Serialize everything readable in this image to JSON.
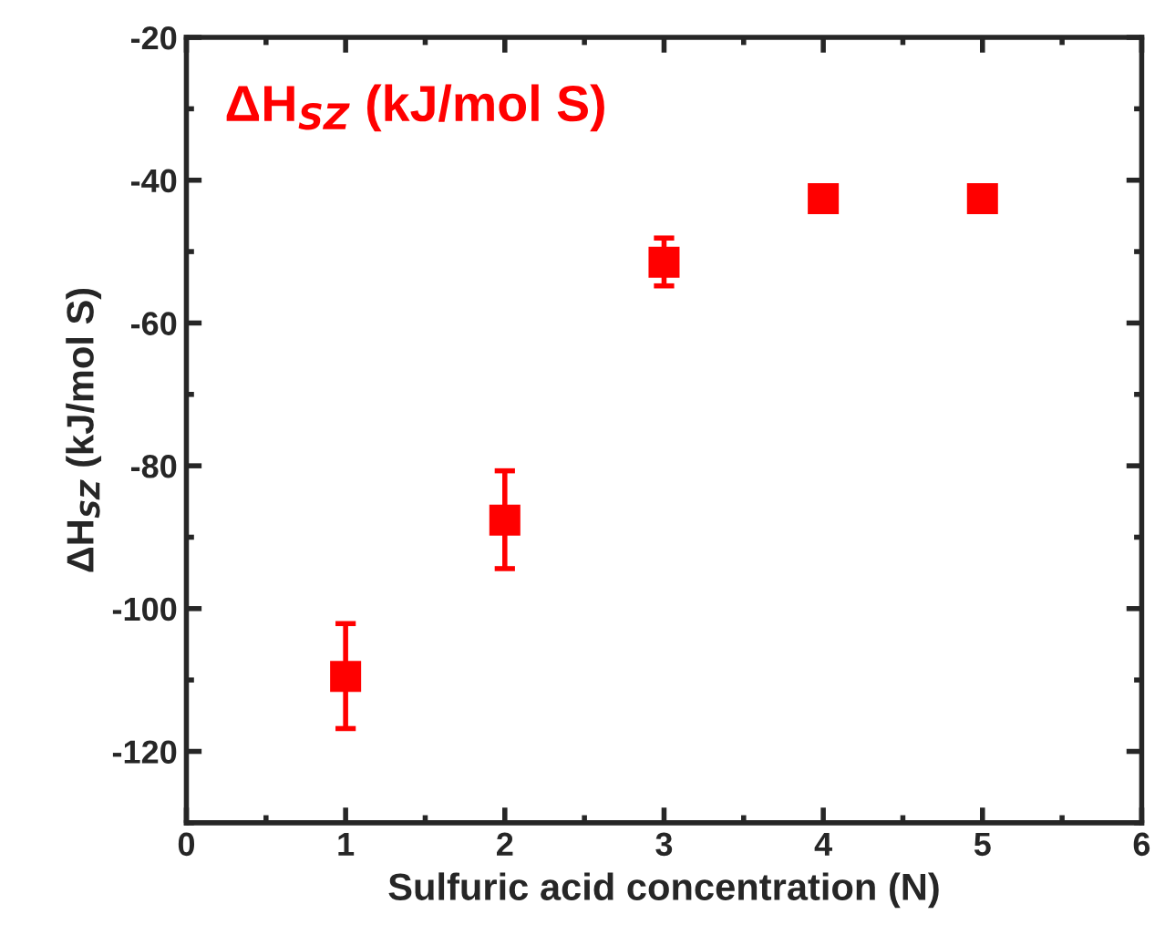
{
  "chart_data": {
    "type": "scatter",
    "xlabel": "Sulfuric acid concentration (N)",
    "ylabel": "ΔH$_{SZ}$ (kJ/mol S)",
    "annotations": [
      "ΔH$_{SZ}$ (kJ/mol S)"
    ],
    "x": [
      1,
      2,
      3,
      4,
      5
    ],
    "series": [
      {
        "color": "#ff0000",
        "values": [
          -109.5,
          -87.6,
          -51.5,
          -42.6,
          -42.6
        ],
        "errors": [
          [
            -116.8,
            -102.1
          ],
          [
            -94.4,
            -80.7
          ],
          [
            -54.8,
            -48.1
          ],
          null,
          null
        ]
      }
    ],
    "marker": "square",
    "xlim": [
      0,
      6
    ],
    "xticks": [
      0,
      1,
      2,
      3,
      4,
      5,
      6
    ],
    "ylim": [
      -130,
      -20
    ],
    "yticks": [
      -120,
      -100,
      -80,
      -60,
      -40,
      -20
    ],
    "grid": false,
    "legend": false
  }
}
